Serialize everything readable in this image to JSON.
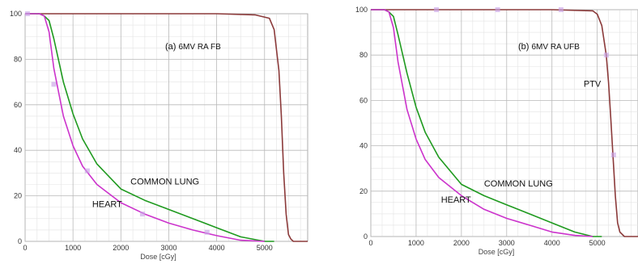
{
  "chart_data": [
    {
      "type": "line",
      "panel_label": "(a)",
      "title": "6MV RA FB",
      "xlabel": "Dose [cGy]",
      "ylabel": "",
      "xlim": [
        0,
        5900
      ],
      "ylim": [
        0,
        100
      ],
      "x_ticks": [
        0,
        1000,
        2000,
        3000,
        4000,
        5000
      ],
      "y_ticks": [
        0,
        20,
        40,
        60,
        80,
        100
      ],
      "grid": true,
      "series": [
        {
          "name": "",
          "color": "#8b3a3a",
          "x": [
            0,
            500,
            1000,
            2000,
            3000,
            4000,
            4800,
            5100,
            5200,
            5300,
            5350,
            5400,
            5450,
            5500,
            5550,
            5600,
            5900
          ],
          "y": [
            100,
            100,
            100,
            100,
            100,
            100,
            99.5,
            98,
            93,
            75,
            55,
            30,
            12,
            3,
            1,
            0,
            0
          ],
          "markers": []
        },
        {
          "name": "COMMON LUNG",
          "color": "#1f9a1f",
          "x": [
            0,
            300,
            400,
            500,
            600,
            800,
            1000,
            1200,
            1500,
            2000,
            2500,
            3000,
            3500,
            4000,
            4500,
            5000,
            5200
          ],
          "y": [
            100,
            100,
            99,
            97,
            89,
            70,
            56,
            45,
            34,
            23,
            18,
            14,
            10,
            6,
            2,
            0,
            0
          ],
          "markers": []
        },
        {
          "name": "HEART",
          "color": "#cc33cc",
          "x": [
            0,
            300,
            400,
            500,
            600,
            800,
            1000,
            1200,
            1500,
            2000,
            2500,
            3000,
            3500,
            4000,
            4500,
            5000
          ],
          "y": [
            100,
            100,
            99,
            92,
            76,
            55,
            42,
            33,
            25,
            17,
            12,
            8,
            5,
            2.5,
            0.5,
            0
          ],
          "markers": [
            [
              50,
              100
            ],
            [
              600,
              69
            ],
            [
              1300,
              31
            ],
            [
              2450,
              12
            ],
            [
              3800,
              4
            ]
          ]
        }
      ],
      "annotations": [
        {
          "text": "COMMON LUNG",
          "x": 2200,
          "y": 25
        },
        {
          "text": "HEART",
          "x": 1400,
          "y": 15
        }
      ]
    },
    {
      "type": "line",
      "panel_label": "(b)",
      "title": "6MV RA UFB",
      "xlabel": "Dose [cGy]",
      "ylabel": "",
      "xlim": [
        0,
        5900
      ],
      "ylim": [
        0,
        100
      ],
      "x_ticks": [
        0,
        1000,
        2000,
        3000,
        4000,
        5000
      ],
      "y_ticks": [
        0,
        20,
        40,
        60,
        80,
        100
      ],
      "grid": true,
      "series": [
        {
          "name": "PTV",
          "color": "#8b3a3a",
          "x": [
            0,
            500,
            1000,
            2000,
            3000,
            4000,
            4900,
            5000,
            5100,
            5200,
            5250,
            5300,
            5350,
            5400,
            5450,
            5500,
            5600,
            5900
          ],
          "y": [
            100,
            100,
            100,
            100,
            100,
            100,
            99.5,
            98,
            93,
            80,
            68,
            52,
            35,
            18,
            6,
            2,
            0,
            0
          ],
          "markers": [
            [
              1450,
              100
            ],
            [
              2800,
              100
            ],
            [
              4200,
              100
            ],
            [
              5200,
              80
            ],
            [
              5360,
              36
            ]
          ]
        },
        {
          "name": "COMMON LUNG",
          "color": "#1f9a1f",
          "x": [
            0,
            300,
            400,
            500,
            600,
            800,
            1000,
            1200,
            1500,
            2000,
            2500,
            3000,
            3500,
            4000,
            4500,
            4900,
            5100
          ],
          "y": [
            100,
            100,
            99,
            97,
            89,
            72,
            57,
            46,
            35,
            23,
            18,
            14,
            10,
            6,
            2,
            0,
            0
          ],
          "markers": []
        },
        {
          "name": "HEART",
          "color": "#cc33cc",
          "x": [
            0,
            300,
            400,
            500,
            600,
            800,
            1000,
            1200,
            1500,
            2000,
            2500,
            3000,
            3500,
            4000,
            4500,
            4900
          ],
          "y": [
            100,
            100,
            99,
            92,
            77,
            56,
            43,
            34,
            26,
            18,
            12,
            8,
            5,
            2,
            0.5,
            0
          ],
          "markers": []
        }
      ],
      "annotations": [
        {
          "text": "COMMON LUNG",
          "x": 2500,
          "y": 22
        },
        {
          "text": "HEART",
          "x": 1550,
          "y": 15
        },
        {
          "text": "PTV",
          "x": 4700,
          "y": 66
        }
      ]
    }
  ]
}
